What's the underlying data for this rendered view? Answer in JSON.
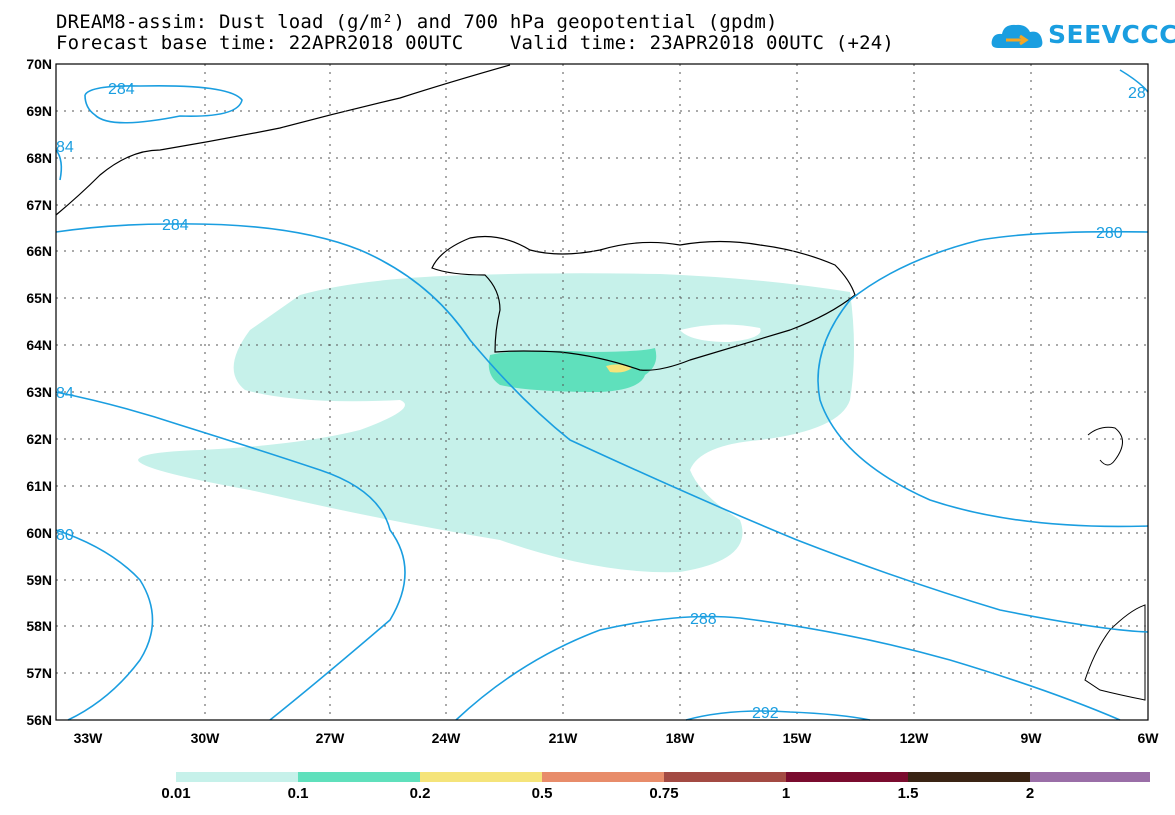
{
  "title": {
    "line1": "DREAM8-assim: Dust load (g/m²) and 700 hPa geopotential (gpdm)",
    "line2": "Forecast base time: 22APR2018 00UTC    Valid time: 23APR2018 00UTC (+24)"
  },
  "logo": {
    "text": "SEEVCCC",
    "icon": "cloud-logo-icon",
    "color": "#1a9ee0"
  },
  "map": {
    "lat_labels": [
      "70N",
      "69N",
      "68N",
      "67N",
      "66N",
      "65N",
      "64N",
      "63N",
      "62N",
      "61N",
      "60N",
      "59N",
      "58N",
      "57N",
      "56N"
    ],
    "lon_labels": [
      "33W",
      "30W",
      "27W",
      "24W",
      "21W",
      "18W",
      "15W",
      "12W",
      "9W",
      "6W"
    ],
    "contour_labels": [
      "284",
      "284",
      "280",
      "84",
      "84",
      "80",
      "288",
      "292",
      "28"
    ],
    "contour_color": "#1a9ee0"
  },
  "colorbar": {
    "labels": [
      "0.01",
      "0.1",
      "0.2",
      "0.5",
      "0.75",
      "1",
      "1.5",
      "2"
    ],
    "colors": [
      "#c6f1ea",
      "#5fe0bc",
      "#f5e47a",
      "#e88c6a",
      "#a34a43",
      "#7a0b2e",
      "#3a2414",
      "#9a6ea7"
    ]
  }
}
